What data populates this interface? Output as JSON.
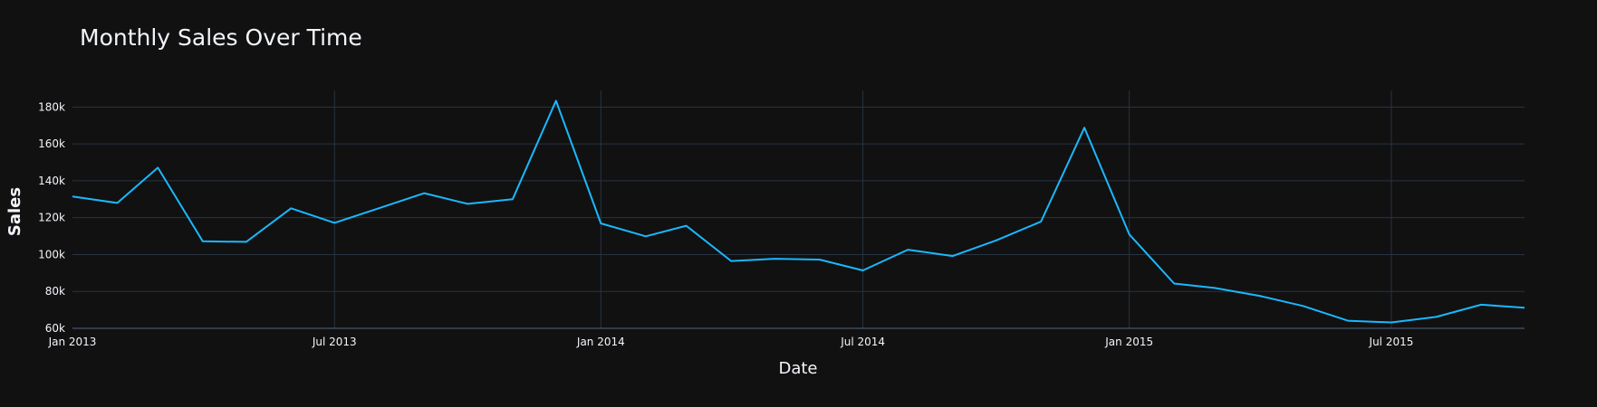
{
  "chart_data": {
    "type": "line",
    "title": "Monthly Sales Over Time",
    "xlabel": "Date",
    "ylabel": "Sales",
    "grid": true,
    "legend": "none",
    "x_ticks": [
      {
        "date": "2013-01-01",
        "label": "Jan 2013"
      },
      {
        "date": "2013-07-01",
        "label": "Jul 2013"
      },
      {
        "date": "2014-01-01",
        "label": "Jan 2014"
      },
      {
        "date": "2014-07-01",
        "label": "Jul 2014"
      },
      {
        "date": "2015-01-01",
        "label": "Jan 2015"
      },
      {
        "date": "2015-07-01",
        "label": "Jul 2015"
      }
    ],
    "y_ticks": [
      {
        "value": 60000,
        "label": "60k"
      },
      {
        "value": 80000,
        "label": "80k"
      },
      {
        "value": 100000,
        "label": "100k"
      },
      {
        "value": 120000,
        "label": "120k"
      },
      {
        "value": 140000,
        "label": "140k"
      },
      {
        "value": 160000,
        "label": "160k"
      },
      {
        "value": 180000,
        "label": "180k"
      }
    ],
    "xlim": [
      "2013-01-01",
      "2015-10-01"
    ],
    "ylim": [
      60000,
      189000
    ],
    "colors": {
      "background": "#111111",
      "series": "#1ab8ff"
    },
    "series": [
      {
        "x": [
          "2013-01-01",
          "2013-02-01",
          "2013-03-01",
          "2013-04-01",
          "2013-05-01",
          "2013-06-01",
          "2013-07-01",
          "2013-08-01",
          "2013-09-01",
          "2013-10-01",
          "2013-11-01",
          "2013-12-01",
          "2014-01-01",
          "2014-02-01",
          "2014-03-01",
          "2014-04-01",
          "2014-05-01",
          "2014-06-01",
          "2014-07-01",
          "2014-08-01",
          "2014-09-01",
          "2014-10-01",
          "2014-11-01",
          "2014-12-01",
          "2015-01-01",
          "2015-02-01",
          "2015-03-01",
          "2015-04-01",
          "2015-05-01",
          "2015-06-01",
          "2015-07-01",
          "2015-08-01",
          "2015-09-01",
          "2015-10-01"
        ],
        "values": [
          131500,
          128000,
          147100,
          107200,
          106900,
          125100,
          117200,
          125200,
          133300,
          127500,
          130000,
          183400,
          116900,
          109900,
          115600,
          96500,
          97700,
          97300,
          91400,
          102600,
          99200,
          107700,
          117900,
          168800,
          110900,
          84300,
          81900,
          77600,
          72100,
          64100,
          63200,
          66200,
          72800,
          71200
        ]
      }
    ]
  }
}
